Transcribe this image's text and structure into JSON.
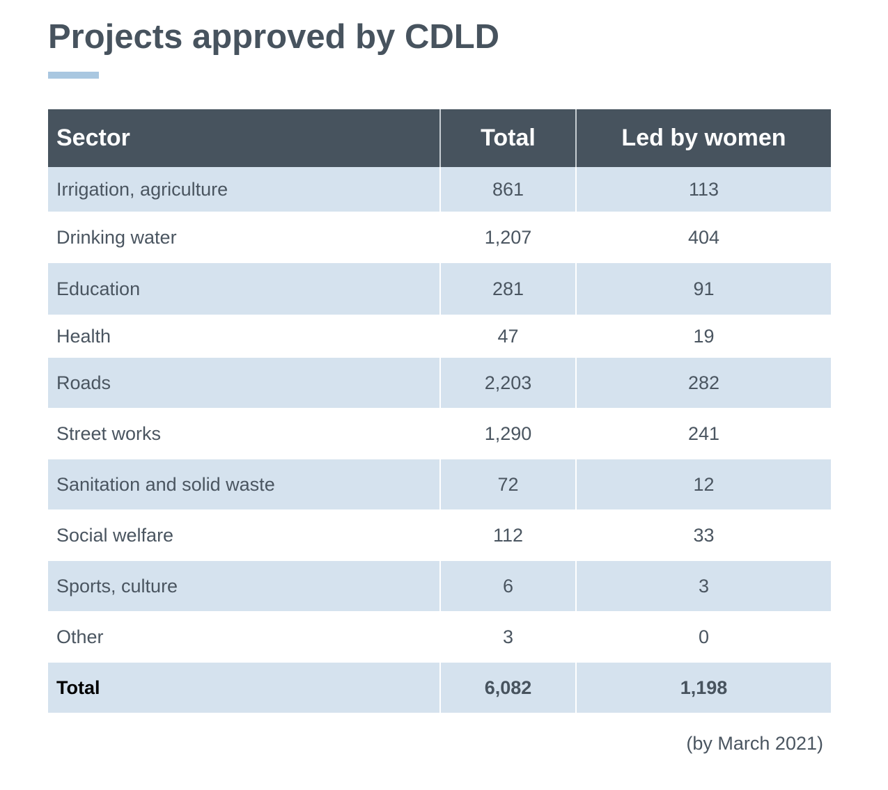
{
  "title": "Projects approved by CDLD",
  "footnote": "(by March 2021)",
  "colors": {
    "header_bg": "#47535e",
    "row_shade": "#d5e2ee",
    "accent": "#a9c7e0",
    "text": "#4a5560"
  },
  "table": {
    "columns": [
      "Sector",
      "Total",
      "Led by women"
    ],
    "rows": [
      {
        "sector": "Irrigation, agriculture",
        "total": "861",
        "women": "113"
      },
      {
        "sector": "Drinking water",
        "total": "1,207",
        "women": "404"
      },
      {
        "sector": "Education",
        "total": "281",
        "women": "91"
      },
      {
        "sector": "Health",
        "total": "47",
        "women": "19"
      },
      {
        "sector": "Roads",
        "total": "2,203",
        "women": "282"
      },
      {
        "sector": "Street works",
        "total": "1,290",
        "women": "241"
      },
      {
        "sector": "Sanitation and solid waste",
        "total": "72",
        "women": "12"
      },
      {
        "sector": "Social welfare",
        "total": "112",
        "women": "33"
      },
      {
        "sector": "Sports, culture",
        "total": "6",
        "women": "3"
      },
      {
        "sector": "Other",
        "total": "3",
        "women": "0"
      }
    ],
    "total_row": {
      "sector": "Total",
      "total": "6,082",
      "women": "1,198"
    }
  },
  "chart_data": {
    "type": "table",
    "title": "Projects approved by CDLD",
    "columns": [
      "Sector",
      "Total",
      "Led by women"
    ],
    "categories": [
      "Irrigation, agriculture",
      "Drinking water",
      "Education",
      "Health",
      "Roads",
      "Street works",
      "Sanitation and solid waste",
      "Social welfare",
      "Sports, culture",
      "Other",
      "Total"
    ],
    "series": [
      {
        "name": "Total",
        "values": [
          861,
          1207,
          281,
          47,
          2203,
          1290,
          72,
          112,
          6,
          3,
          6082
        ]
      },
      {
        "name": "Led by women",
        "values": [
          113,
          404,
          91,
          19,
          282,
          241,
          12,
          33,
          3,
          0,
          1198
        ]
      }
    ],
    "note": "(by March 2021)"
  }
}
